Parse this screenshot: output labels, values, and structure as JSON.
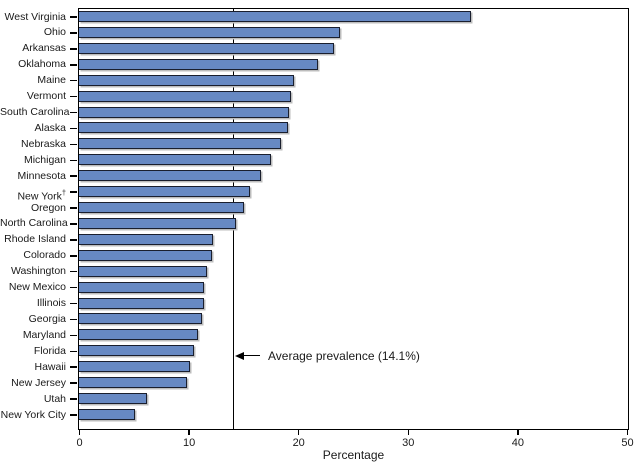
{
  "chart_data": {
    "type": "bar",
    "orientation": "horizontal",
    "title": "",
    "categories": [
      "West Virginia",
      "Ohio",
      "Arkansas",
      "Oklahoma",
      "Maine",
      "Vermont",
      "South Carolina",
      "Alaska",
      "Nebraska",
      "Michigan",
      "Minnesota",
      "New York",
      "Oregon",
      "North Carolina",
      "Rhode Island",
      "Colorado",
      "Washington",
      "New Mexico",
      "Illinois",
      "Georgia",
      "Maryland",
      "Florida",
      "Hawaii",
      "New Jersey",
      "Utah",
      "New York City"
    ],
    "category_superscripts": {
      "New York": "†"
    },
    "values": [
      35.7,
      23.8,
      23.2,
      21.8,
      19.6,
      19.3,
      19.1,
      19.0,
      18.4,
      17.5,
      16.6,
      15.6,
      15.0,
      14.3,
      12.2,
      12.1,
      11.7,
      11.4,
      11.4,
      11.2,
      10.8,
      10.5,
      10.1,
      9.8,
      6.2,
      5.1
    ],
    "xlabel": "Percentage",
    "xlim": [
      0,
      50
    ],
    "xticks": [
      0,
      10,
      20,
      30,
      40,
      50
    ],
    "grid": false,
    "legend": null,
    "annotation": {
      "text": "Average prevalence (14.1%)",
      "value": 14.1
    },
    "colors": {
      "bar_fill": "#6789c3",
      "bar_border": "#1a1f2e",
      "bar_shadow": "#bdbdbd",
      "axis": "#000000"
    }
  }
}
